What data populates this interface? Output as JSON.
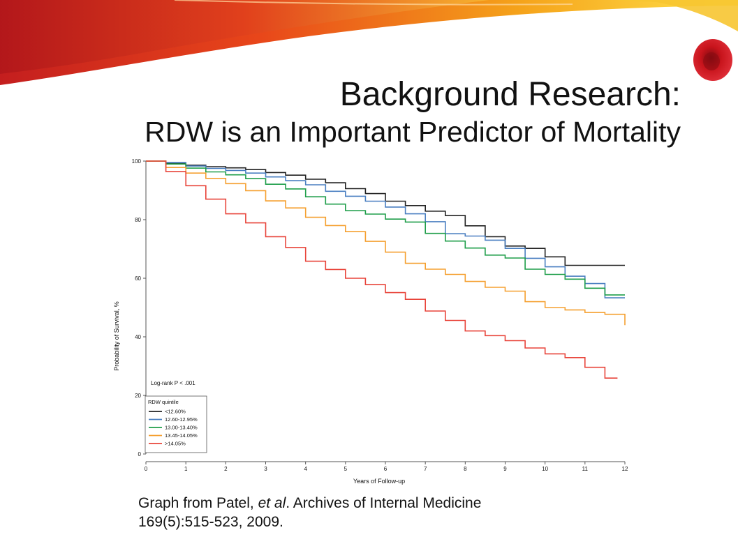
{
  "slide": {
    "title": "Background Research:",
    "subtitle": "RDW is an Important Predictor of Mortality",
    "citation_pre": "Graph from Patel, ",
    "citation_italic": "et al",
    "citation_post": ". Archives of Internal Medicine",
    "citation_line2": "169(5):515-523, 2009."
  },
  "decoration": {
    "accent_colors": [
      "#c41e1e",
      "#e8461a",
      "#f5a21a",
      "#ffe24a"
    ],
    "blood_cell_color": "#c8141c"
  },
  "chart_data": {
    "type": "line",
    "step": true,
    "xlabel": "Years of Follow-up",
    "ylabel": "Probability of Survival, %",
    "xlim": [
      0,
      12
    ],
    "ylim": [
      0,
      100
    ],
    "xticks": [
      0,
      1,
      2,
      3,
      4,
      5,
      6,
      7,
      8,
      9,
      10,
      11,
      12
    ],
    "yticks": [
      0,
      20,
      40,
      60,
      80,
      100
    ],
    "annotation": "Log-rank P < .001",
    "legend_title": "RDW quintile",
    "legend_position": "bottom-left",
    "grid": false,
    "series": [
      {
        "name": "<12.60%",
        "color": "#222222",
        "x": [
          0,
          0.5,
          1,
          1.5,
          2,
          2.5,
          3,
          3.5,
          4,
          4.5,
          5,
          5.5,
          6,
          6.5,
          7,
          7.5,
          8,
          8.5,
          9,
          9.5,
          10,
          10.5,
          11,
          11.5,
          12
        ],
        "y": [
          100,
          99.3,
          98.6,
          98.1,
          97.7,
          97.1,
          96.1,
          95.2,
          93.8,
          92.6,
          90.6,
          88.9,
          86.3,
          84.8,
          82.9,
          81.4,
          77.9,
          74.2,
          71.0,
          70.2,
          67.3,
          64.4,
          64.4,
          64.4,
          64.4
        ]
      },
      {
        "name": "12.60-12.95%",
        "color": "#4a7fc1",
        "x": [
          0,
          0.5,
          1,
          1.5,
          2,
          2.5,
          3,
          3.5,
          4,
          4.5,
          5,
          5.5,
          6,
          6.5,
          7,
          7.5,
          8,
          8.5,
          9,
          9.5,
          10,
          10.5,
          11,
          11.5,
          12
        ],
        "y": [
          100,
          99.5,
          98.3,
          97.5,
          96.8,
          95.9,
          94.6,
          93.3,
          91.9,
          89.7,
          88.0,
          86.3,
          84.3,
          82.0,
          79.3,
          75.2,
          74.4,
          73.0,
          70.2,
          66.8,
          63.9,
          60.7,
          58.2,
          53.3,
          53.3
        ]
      },
      {
        "name": "13.00-13.40%",
        "color": "#1f9e4a",
        "x": [
          0,
          0.5,
          1,
          1.5,
          2,
          2.5,
          3,
          3.5,
          4,
          4.5,
          5,
          5.5,
          6,
          6.5,
          7,
          7.5,
          8,
          8.5,
          9,
          9.5,
          10,
          10.5,
          11,
          11.5,
          12
        ],
        "y": [
          100,
          99.0,
          97.6,
          96.3,
          95.3,
          94.0,
          92.1,
          90.5,
          87.8,
          85.3,
          83.1,
          81.9,
          80.2,
          79.2,
          75.3,
          72.7,
          70.3,
          67.9,
          66.9,
          63.1,
          61.3,
          59.7,
          56.6,
          54.3,
          54.3
        ]
      },
      {
        "name": "13.45-14.05%",
        "color": "#f5a030",
        "x": [
          0,
          0.5,
          1,
          1.5,
          2,
          2.5,
          3,
          3.5,
          4,
          4.5,
          5,
          5.5,
          6,
          6.5,
          7,
          7.5,
          8,
          8.5,
          9,
          9.5,
          10,
          10.5,
          11,
          11.5,
          12
        ],
        "y": [
          100,
          97.8,
          95.9,
          94.1,
          92.3,
          89.9,
          86.4,
          84.0,
          80.8,
          78.0,
          75.9,
          72.6,
          68.9,
          65.1,
          63.1,
          61.3,
          58.9,
          56.9,
          55.6,
          52.0,
          50.0,
          49.2,
          48.3,
          47.7,
          44.0
        ]
      },
      {
        "name": ">14.05%",
        "color": "#e8443a",
        "x": [
          0,
          0.5,
          1,
          1.5,
          2,
          2.5,
          3,
          3.5,
          4,
          4.5,
          5,
          5.5,
          6,
          6.5,
          7,
          7.5,
          8,
          8.5,
          9,
          9.5,
          10,
          10.5,
          11,
          11.5,
          11.8
        ],
        "y": [
          100,
          96.4,
          91.6,
          87.0,
          82.0,
          78.9,
          74.2,
          70.5,
          65.8,
          63.0,
          60.0,
          57.8,
          55.1,
          52.8,
          48.8,
          45.6,
          42.0,
          40.4,
          38.7,
          36.2,
          34.2,
          32.9,
          29.6,
          25.9,
          25.7
        ]
      }
    ]
  }
}
